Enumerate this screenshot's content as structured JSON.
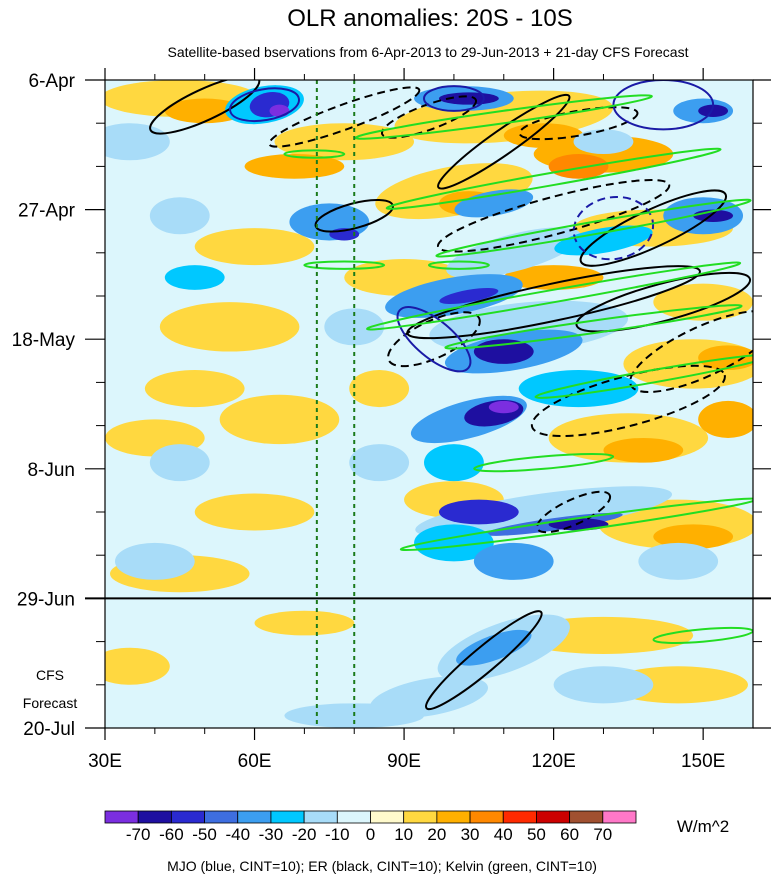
{
  "chart_data": {
    "type": "heatmap",
    "title": "OLR anomalies: 20S - 10S",
    "subtitle": "Satellite-based bservations from 6-Apr-2013 to 29-Jun-2013 + 21-day CFS Forecast",
    "x_axis": {
      "range": [
        30,
        160
      ],
      "tick_values": [
        30,
        60,
        90,
        120,
        150
      ],
      "tick_labels": [
        "30E",
        "60E",
        "90E",
        "120E",
        "150E"
      ]
    },
    "y_axis": {
      "range": [
        "6-Apr-2013",
        "20-Jul-2013"
      ],
      "tick_labels": [
        "6-Apr",
        "27-Apr",
        "18-May",
        "8-Jun",
        "29-Jun",
        "20-Jul"
      ],
      "tick_days": [
        0,
        21,
        42,
        63,
        84,
        105
      ]
    },
    "forecast_label": "CFS Forecast",
    "forecast_start_day": 84,
    "reference_lines_lon": [
      72.5,
      80
    ],
    "colorbar": {
      "unit": "W/m^2",
      "labels": [
        "-70",
        "-60",
        "-50",
        "-40",
        "-30",
        "-20",
        "-10",
        "0",
        "10",
        "20",
        "30",
        "40",
        "50",
        "60",
        "70"
      ],
      "colors": [
        "#7b2ee0",
        "#1e0fa0",
        "#2a2ad0",
        "#3e6ee0",
        "#3c9ef0",
        "#00c8ff",
        "#a8dcf8",
        "#dcf6fc",
        "#fffacc",
        "#ffd840",
        "#ffb000",
        "#ff8800",
        "#ff2a00",
        "#cc0000",
        "#a05030",
        "#ff78c8"
      ]
    },
    "contour_legend": "MJO (blue, CINT=10); ER (black, CINT=10); Kelvin (green, CINT=10)",
    "series_colors": {
      "MJO": "#1a1aa6",
      "ER": "#000000",
      "Kelvin": "#22dd22"
    }
  }
}
